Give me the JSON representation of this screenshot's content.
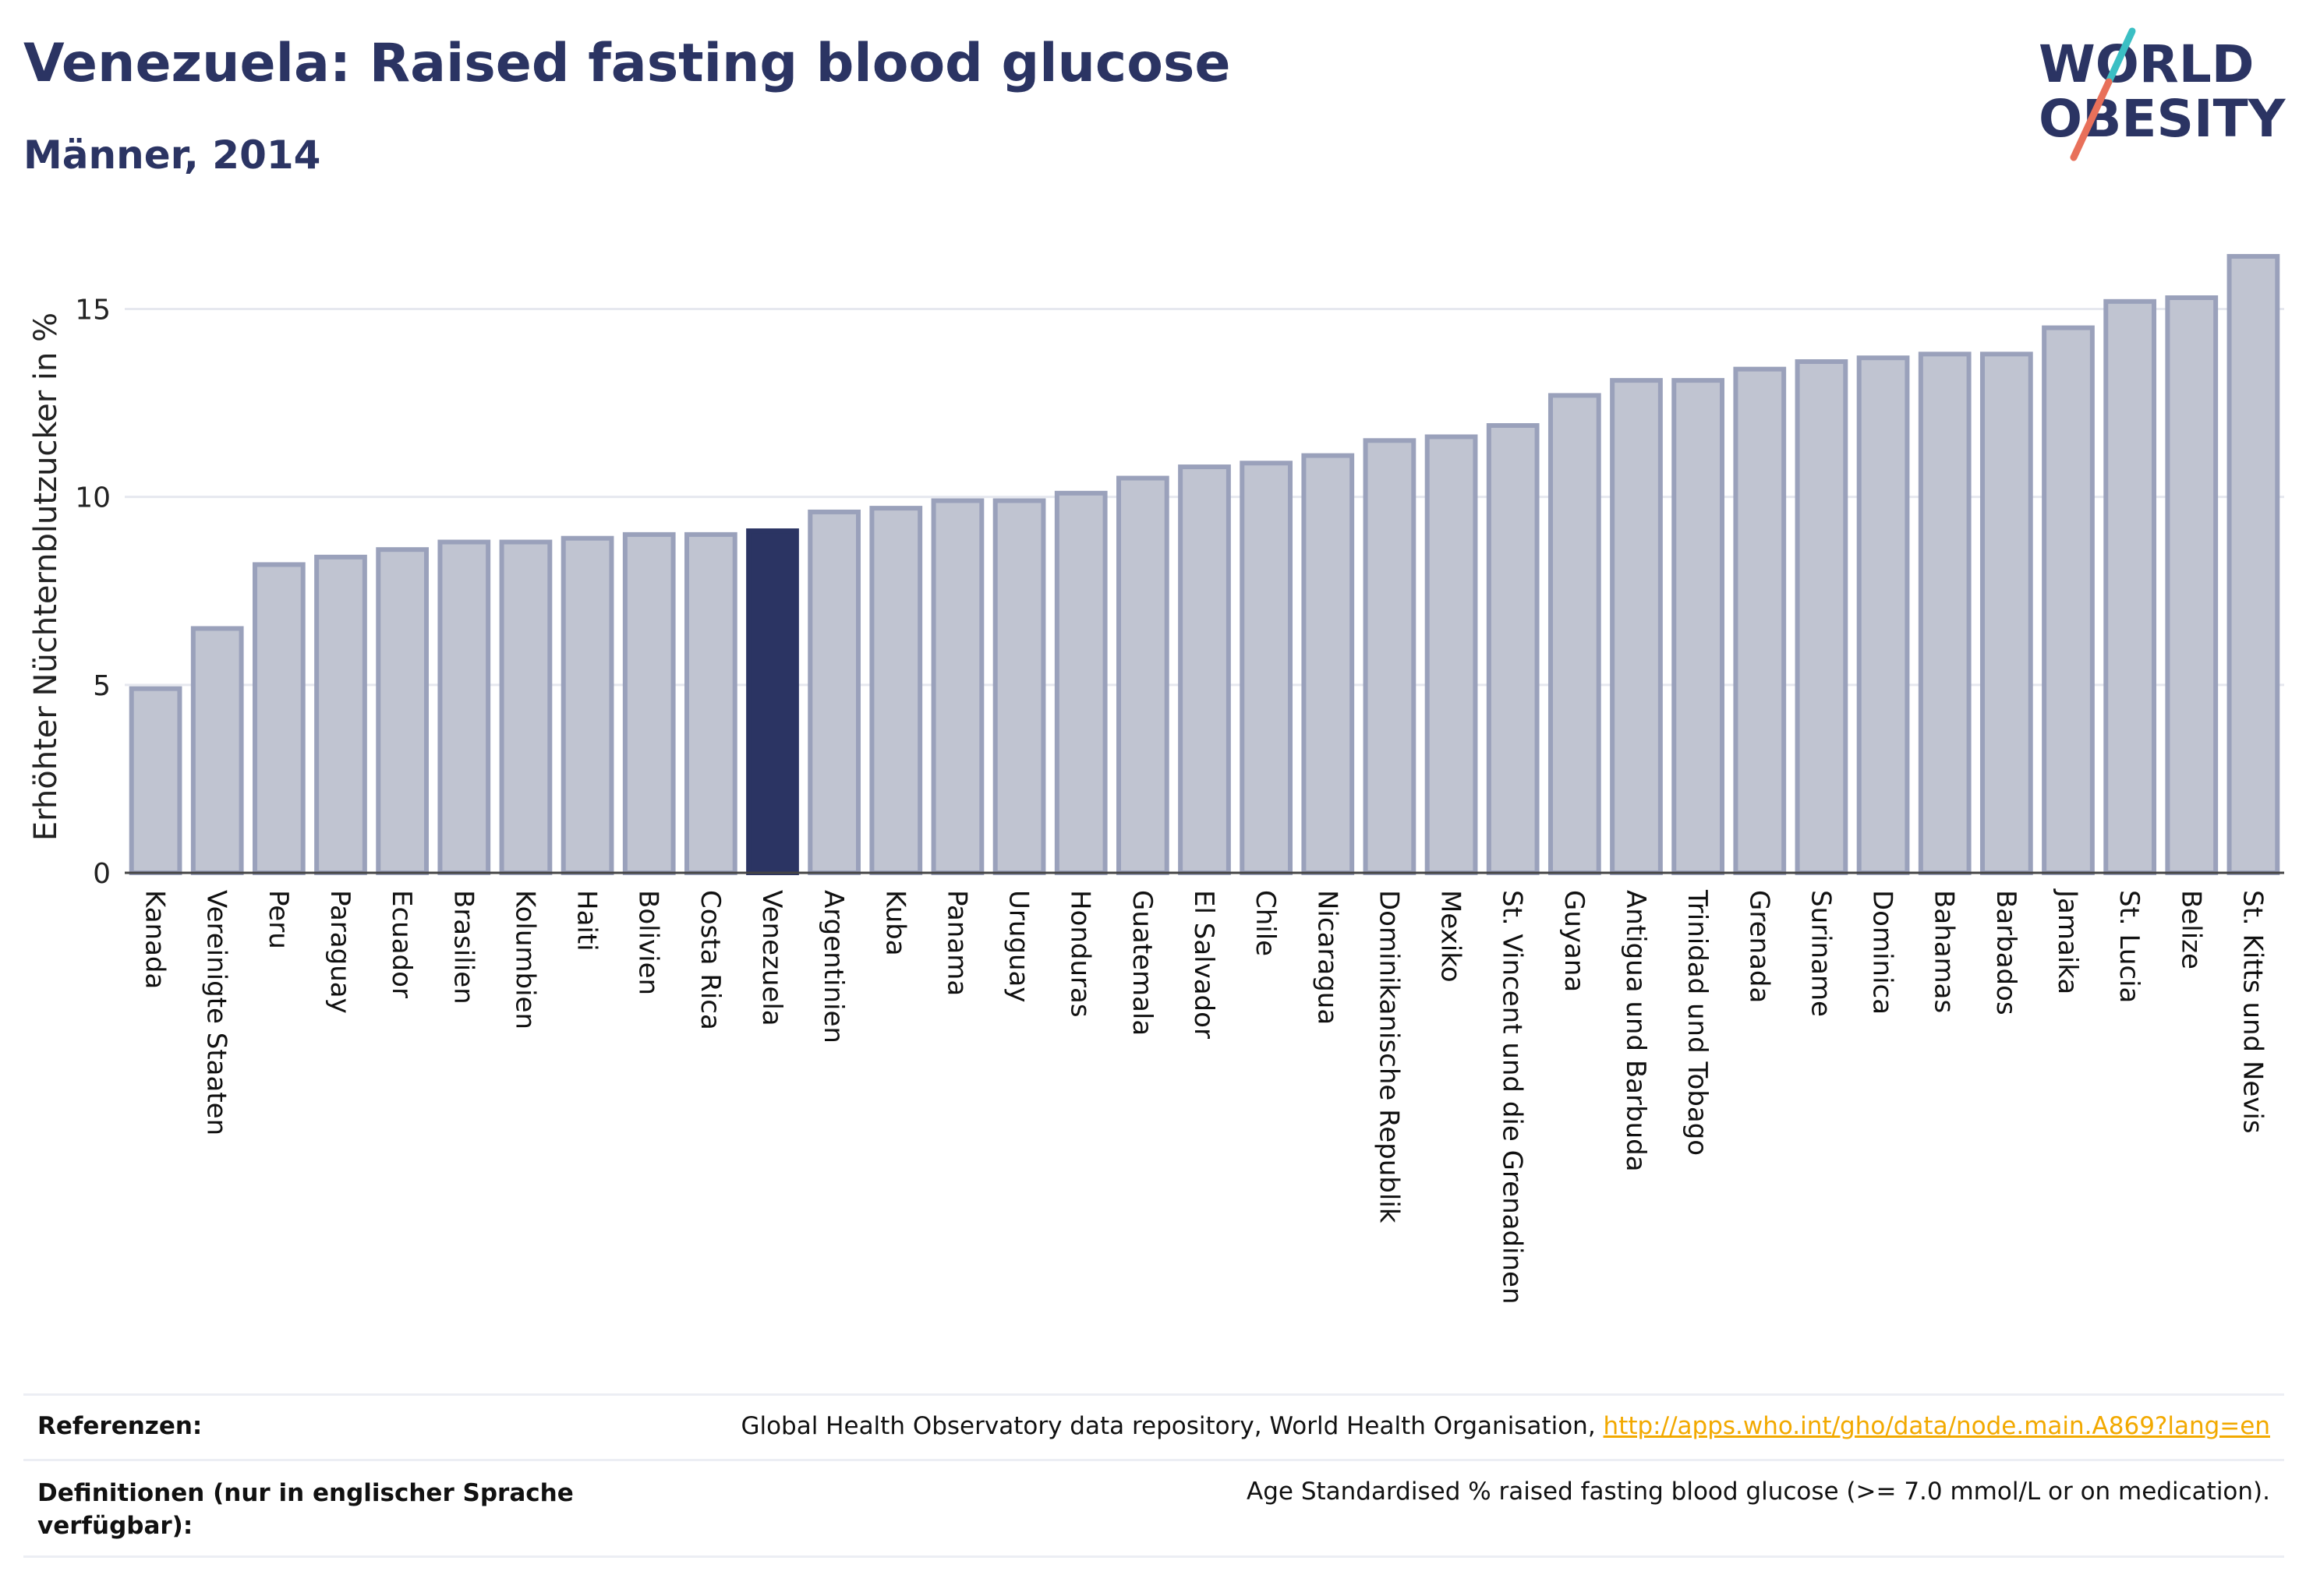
{
  "header": {
    "title": "Venezuela: Raised fasting blood glucose",
    "subtitle": "Männer, 2014"
  },
  "logo": {
    "line1": "WORLD",
    "line2": "OBESITY"
  },
  "colors": {
    "bar": "#c0c4d1",
    "bar_border": "#9aa1bb",
    "highlight": "#2b3463",
    "text": "#2b3463"
  },
  "chart_data": {
    "type": "bar",
    "title": "Venezuela: Raised fasting blood glucose",
    "subtitle": "Männer, 2014",
    "ylabel": "Erhöhter Nüchternblutzucker in %",
    "xlabel": "",
    "ylim": [
      0,
      17
    ],
    "yticks": [
      0,
      5,
      10,
      15
    ],
    "grid": true,
    "highlight": "Venezuela",
    "categories": [
      "Kanada",
      "Vereinigte Staaten",
      "Peru",
      "Paraguay",
      "Ecuador",
      "Brasilien",
      "Kolumbien",
      "Haiti",
      "Bolivien",
      "Costa Rica",
      "Venezuela",
      "Argentinien",
      "Kuba",
      "Panama",
      "Uruguay",
      "Honduras",
      "Guatemala",
      "El Salvador",
      "Chile",
      "Nicaragua",
      "Dominikanische Republik",
      "Mexiko",
      "St. Vincent und die Grenadinen",
      "Guyana",
      "Antigua und Barbuda",
      "Trinidad und Tobago",
      "Grenada",
      "Suriname",
      "Dominica",
      "Bahamas",
      "Barbados",
      "Jamaika",
      "St. Lucia",
      "Belize",
      "St. Kitts und Nevis"
    ],
    "values": [
      4.9,
      6.5,
      8.2,
      8.4,
      8.6,
      8.8,
      8.8,
      8.9,
      9.0,
      9.0,
      9.1,
      9.6,
      9.7,
      9.9,
      9.9,
      10.1,
      10.5,
      10.8,
      10.9,
      11.1,
      11.5,
      11.6,
      11.9,
      12.7,
      13.1,
      13.1,
      13.4,
      13.6,
      13.7,
      13.8,
      13.8,
      14.5,
      15.2,
      15.3,
      16.4
    ]
  },
  "footer": {
    "references_label": "Referenzen:",
    "references_text": "Global Health Observatory data repository, World Health Organisation, ",
    "references_link": "http://apps.who.int/gho/data/node.main.A869?lang=en",
    "definitions_label": "Definitionen (nur in englischer Sprache verfügbar):",
    "definitions_text": "Age Standardised % raised fasting blood glucose (>= 7.0 mmol/L or on medication)."
  }
}
